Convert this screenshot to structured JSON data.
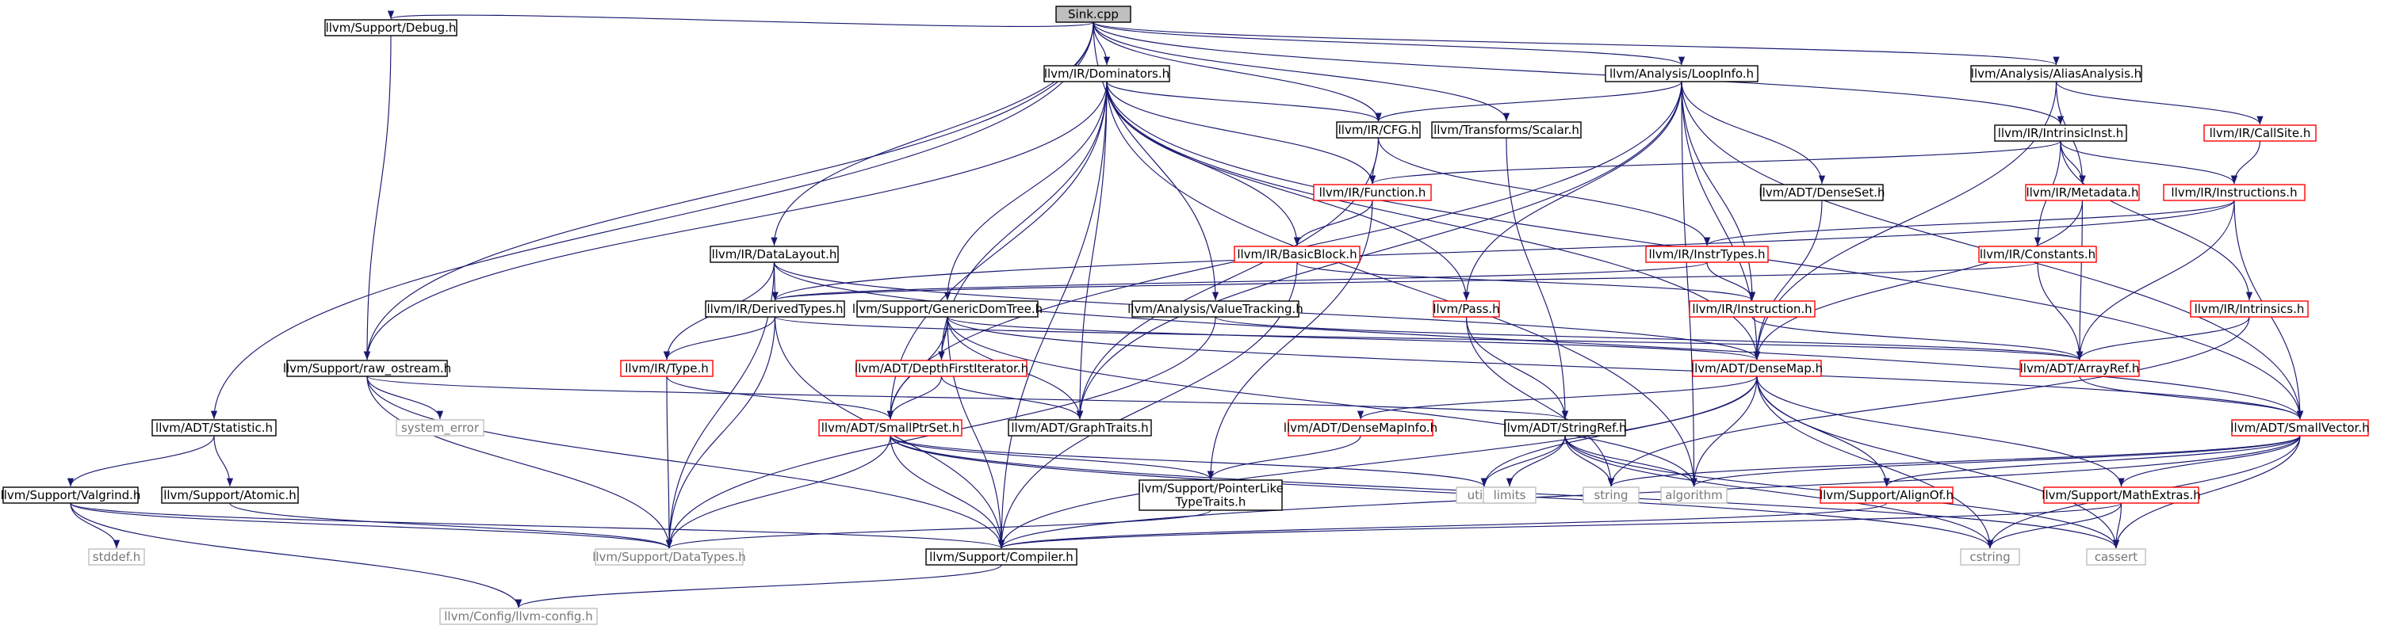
{
  "title": "Sink.cpp",
  "colors": {
    "edge": "#191970",
    "root_fill": "#bfbfbf",
    "ok_border": "#000000",
    "incomplete_border": "#ff0000",
    "external_border": "#bfbfbf",
    "external_text": "#777777"
  },
  "nodes": [
    {
      "id": "sink",
      "label": "Sink.cpp",
      "kind": "root"
    },
    {
      "id": "debug",
      "label": "llvm/Support/Debug.h",
      "kind": "ok"
    },
    {
      "id": "dominators",
      "label": "llvm/IR/Dominators.h",
      "kind": "ok"
    },
    {
      "id": "loopinfo",
      "label": "llvm/Analysis/LoopInfo.h",
      "kind": "ok"
    },
    {
      "id": "aliasanalysis",
      "label": "llvm/Analysis/AliasAnalysis.h",
      "kind": "ok"
    },
    {
      "id": "cfg",
      "label": "llvm/IR/CFG.h",
      "kind": "ok"
    },
    {
      "id": "scalar",
      "label": "llvm/Transforms/Scalar.h",
      "kind": "ok"
    },
    {
      "id": "intrinsicinst",
      "label": "llvm/IR/IntrinsicInst.h",
      "kind": "ok"
    },
    {
      "id": "callsite",
      "label": "llvm/IR/CallSite.h",
      "kind": "incomplete"
    },
    {
      "id": "function",
      "label": "llvm/IR/Function.h",
      "kind": "incomplete"
    },
    {
      "id": "denseset",
      "label": "llvm/ADT/DenseSet.h",
      "kind": "ok"
    },
    {
      "id": "metadata",
      "label": "llvm/IR/Metadata.h",
      "kind": "incomplete"
    },
    {
      "id": "instructions",
      "label": "llvm/IR/Instructions.h",
      "kind": "incomplete"
    },
    {
      "id": "datalayout",
      "label": "llvm/IR/DataLayout.h",
      "kind": "ok"
    },
    {
      "id": "basicblock",
      "label": "llvm/IR/BasicBlock.h",
      "kind": "incomplete"
    },
    {
      "id": "instrtypes",
      "label": "llvm/IR/InstrTypes.h",
      "kind": "incomplete"
    },
    {
      "id": "constants",
      "label": "llvm/IR/Constants.h",
      "kind": "incomplete"
    },
    {
      "id": "derivedtypes",
      "label": "llvm/IR/DerivedTypes.h",
      "kind": "ok"
    },
    {
      "id": "genericdomtree",
      "label": "llvm/Support/GenericDomTree.h",
      "kind": "ok"
    },
    {
      "id": "valuetracking",
      "label": "llvm/Analysis/ValueTracking.h",
      "kind": "ok"
    },
    {
      "id": "pass",
      "label": "llvm/Pass.h",
      "kind": "incomplete"
    },
    {
      "id": "instruction",
      "label": "llvm/IR/Instruction.h",
      "kind": "incomplete"
    },
    {
      "id": "intrinsics",
      "label": "llvm/IR/Intrinsics.h",
      "kind": "incomplete"
    },
    {
      "id": "rawostream",
      "label": "llvm/Support/raw_ostream.h",
      "kind": "ok"
    },
    {
      "id": "type",
      "label": "llvm/IR/Type.h",
      "kind": "incomplete"
    },
    {
      "id": "dfiterator",
      "label": "llvm/ADT/DepthFirstIterator.h",
      "kind": "incomplete"
    },
    {
      "id": "densemap",
      "label": "llvm/ADT/DenseMap.h",
      "kind": "incomplete"
    },
    {
      "id": "arrayref",
      "label": "llvm/ADT/ArrayRef.h",
      "kind": "incomplete"
    },
    {
      "id": "systemerror",
      "label": "system_error",
      "kind": "external"
    },
    {
      "id": "statistic",
      "label": "llvm/ADT/Statistic.h",
      "kind": "ok"
    },
    {
      "id": "smallptrset",
      "label": "llvm/ADT/SmallPtrSet.h",
      "kind": "incomplete"
    },
    {
      "id": "graphtraits",
      "label": "llvm/ADT/GraphTraits.h",
      "kind": "ok"
    },
    {
      "id": "densemapinfo",
      "label": "llvm/ADT/DenseMapInfo.h",
      "kind": "incomplete"
    },
    {
      "id": "stringref",
      "label": "llvm/ADT/StringRef.h",
      "kind": "ok"
    },
    {
      "id": "smallvector",
      "label": "llvm/ADT/SmallVector.h",
      "kind": "incomplete"
    },
    {
      "id": "valgrind",
      "label": "llvm/Support/Valgrind.h",
      "kind": "ok"
    },
    {
      "id": "atomic",
      "label": "llvm/Support/Atomic.h",
      "kind": "ok"
    },
    {
      "id": "pointerlike",
      "label": "llvm/Support/PointerLike\nTypeTraits.h",
      "kind": "ok"
    },
    {
      "id": "utility",
      "label": "utility",
      "kind": "external"
    },
    {
      "id": "limits",
      "label": "limits",
      "kind": "external"
    },
    {
      "id": "string",
      "label": "string",
      "kind": "external"
    },
    {
      "id": "algorithm",
      "label": "algorithm",
      "kind": "external"
    },
    {
      "id": "alignof",
      "label": "llvm/Support/AlignOf.h",
      "kind": "incomplete"
    },
    {
      "id": "mathextras",
      "label": "llvm/Support/MathExtras.h",
      "kind": "incomplete"
    },
    {
      "id": "stddef",
      "label": "stddef.h",
      "kind": "external"
    },
    {
      "id": "datatypes",
      "label": "llvm/Support/DataTypes.h",
      "kind": "external"
    },
    {
      "id": "compiler",
      "label": "llvm/Support/Compiler.h",
      "kind": "ok"
    },
    {
      "id": "cstring",
      "label": "cstring",
      "kind": "external"
    },
    {
      "id": "cassert",
      "label": "cassert",
      "kind": "external"
    },
    {
      "id": "llvmconfig",
      "label": "llvm/Config/llvm-config.h",
      "kind": "external"
    }
  ],
  "edges": [
    [
      "sink",
      "debug"
    ],
    [
      "sink",
      "dominators"
    ],
    [
      "sink",
      "loopinfo"
    ],
    [
      "sink",
      "aliasanalysis"
    ],
    [
      "sink",
      "cfg"
    ],
    [
      "sink",
      "scalar"
    ],
    [
      "sink",
      "intrinsicinst"
    ],
    [
      "sink",
      "datalayout"
    ],
    [
      "sink",
      "valuetracking"
    ],
    [
      "sink",
      "statistic"
    ],
    [
      "sink",
      "rawostream"
    ],
    [
      "debug",
      "rawostream"
    ],
    [
      "dominators",
      "cfg"
    ],
    [
      "dominators",
      "function"
    ],
    [
      "dominators",
      "basicblock"
    ],
    [
      "dominators",
      "genericdomtree"
    ],
    [
      "dominators",
      "rawostream"
    ],
    [
      "dominators",
      "dfiterator"
    ],
    [
      "dominators",
      "smallptrset"
    ],
    [
      "dominators",
      "graphtraits"
    ],
    [
      "dominators",
      "densemap"
    ],
    [
      "dominators",
      "smallvector"
    ],
    [
      "dominators",
      "compiler"
    ],
    [
      "dominators",
      "algorithm"
    ],
    [
      "dominators",
      "pass"
    ],
    [
      "loopinfo",
      "cfg"
    ],
    [
      "loopinfo",
      "denseset"
    ],
    [
      "loopinfo",
      "densemap"
    ],
    [
      "loopinfo",
      "pass"
    ],
    [
      "loopinfo",
      "instruction"
    ],
    [
      "loopinfo",
      "smallvector"
    ],
    [
      "loopinfo",
      "algorithm"
    ],
    [
      "loopinfo",
      "graphtraits"
    ],
    [
      "loopinfo",
      "smallptrset"
    ],
    [
      "aliasanalysis",
      "callsite"
    ],
    [
      "aliasanalysis",
      "metadata"
    ],
    [
      "aliasanalysis",
      "densemap"
    ],
    [
      "cfg",
      "function"
    ],
    [
      "cfg",
      "instrtypes"
    ],
    [
      "cfg",
      "graphtraits"
    ],
    [
      "scalar",
      "stringref"
    ],
    [
      "intrinsicinst",
      "function"
    ],
    [
      "intrinsicinst",
      "metadata"
    ],
    [
      "intrinsicinst",
      "instructions"
    ],
    [
      "intrinsicinst",
      "constants"
    ],
    [
      "intrinsicinst",
      "intrinsics"
    ],
    [
      "callsite",
      "instructions"
    ],
    [
      "function",
      "basicblock"
    ],
    [
      "function",
      "pointerlike"
    ],
    [
      "denseset",
      "densemap"
    ],
    [
      "metadata",
      "arrayref"
    ],
    [
      "metadata",
      "densemap"
    ],
    [
      "instructions",
      "instrtypes"
    ],
    [
      "instructions",
      "arrayref"
    ],
    [
      "instructions",
      "smallvector"
    ],
    [
      "instructions",
      "derivedtypes"
    ],
    [
      "datalayout",
      "derivedtypes"
    ],
    [
      "datalayout",
      "type"
    ],
    [
      "datalayout",
      "densemap"
    ],
    [
      "datalayout",
      "smallvector"
    ],
    [
      "datalayout",
      "datatypes"
    ],
    [
      "basicblock",
      "instruction"
    ],
    [
      "basicblock",
      "compiler"
    ],
    [
      "instrtypes",
      "instruction"
    ],
    [
      "instrtypes",
      "derivedtypes"
    ],
    [
      "constants",
      "derivedtypes"
    ],
    [
      "constants",
      "arrayref"
    ],
    [
      "derivedtypes",
      "type"
    ],
    [
      "derivedtypes",
      "arrayref"
    ],
    [
      "derivedtypes",
      "datatypes"
    ],
    [
      "derivedtypes",
      "compiler"
    ],
    [
      "genericdomtree",
      "dfiterator"
    ],
    [
      "genericdomtree",
      "densemap"
    ],
    [
      "genericdomtree",
      "smallptrset"
    ],
    [
      "genericdomtree",
      "graphtraits"
    ],
    [
      "genericdomtree",
      "compiler"
    ],
    [
      "genericdomtree",
      "smallvector"
    ],
    [
      "genericdomtree",
      "algorithm"
    ],
    [
      "valuetracking",
      "datatypes"
    ],
    [
      "valuetracking",
      "arrayref"
    ],
    [
      "pass",
      "stringref"
    ],
    [
      "pass",
      "string"
    ],
    [
      "instruction",
      "arrayref"
    ],
    [
      "intrinsics",
      "arrayref"
    ],
    [
      "intrinsics",
      "string"
    ],
    [
      "rawostream",
      "stringref"
    ],
    [
      "rawostream",
      "systemerror"
    ],
    [
      "rawostream",
      "compiler"
    ],
    [
      "rawostream",
      "datatypes"
    ],
    [
      "type",
      "smallptrset"
    ],
    [
      "type",
      "datatypes"
    ],
    [
      "dfiterator",
      "smallptrset"
    ],
    [
      "dfiterator",
      "graphtraits"
    ],
    [
      "densemap",
      "densemapinfo"
    ],
    [
      "densemap",
      "alignof"
    ],
    [
      "densemap",
      "mathextras"
    ],
    [
      "densemap",
      "algorithm"
    ],
    [
      "densemap",
      "utility"
    ],
    [
      "densemap",
      "cassert"
    ],
    [
      "densemap",
      "cstring"
    ],
    [
      "densemap",
      "compiler"
    ],
    [
      "arrayref",
      "smallvector"
    ],
    [
      "statistic",
      "valgrind"
    ],
    [
      "statistic",
      "atomic"
    ],
    [
      "smallptrset",
      "pointerlike"
    ],
    [
      "smallptrset",
      "compiler"
    ],
    [
      "smallptrset",
      "datatypes"
    ],
    [
      "smallptrset",
      "cassert"
    ],
    [
      "smallptrset",
      "cstring"
    ],
    [
      "smallptrset",
      "utility"
    ],
    [
      "densemapinfo",
      "pointerlike"
    ],
    [
      "stringref",
      "utility"
    ],
    [
      "stringref",
      "limits"
    ],
    [
      "stringref",
      "string"
    ],
    [
      "stringref",
      "algorithm"
    ],
    [
      "stringref",
      "cstring"
    ],
    [
      "stringref",
      "cassert"
    ],
    [
      "smallvector",
      "alignof"
    ],
    [
      "smallvector",
      "mathextras"
    ],
    [
      "smallvector",
      "compiler"
    ],
    [
      "smallvector",
      "algorithm"
    ],
    [
      "smallvector",
      "cassert"
    ],
    [
      "smallvector",
      "cstring"
    ],
    [
      "smallvector",
      "string"
    ],
    [
      "valgrind",
      "datatypes"
    ],
    [
      "valgrind",
      "compiler"
    ],
    [
      "valgrind",
      "stddef"
    ],
    [
      "valgrind",
      "llvmconfig"
    ],
    [
      "atomic",
      "datatypes"
    ],
    [
      "pointerlike",
      "datatypes"
    ],
    [
      "alignof",
      "compiler"
    ],
    [
      "mathextras",
      "compiler"
    ],
    [
      "mathextras",
      "cstring"
    ],
    [
      "mathextras",
      "cassert"
    ],
    [
      "compiler",
      "llvmconfig"
    ]
  ]
}
